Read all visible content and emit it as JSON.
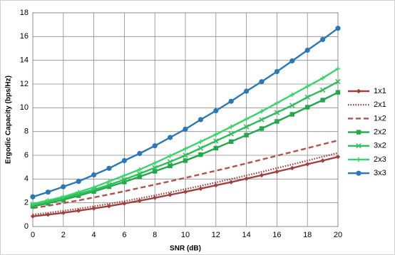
{
  "chart_data": {
    "type": "line",
    "x_label": "SNR (dB)",
    "y_label": "Ergodic Capacity (bps/Hz)",
    "x": [
      0,
      1,
      2,
      3,
      4,
      5,
      6,
      7,
      8,
      9,
      10,
      11,
      12,
      13,
      14,
      15,
      16,
      17,
      18,
      19,
      20
    ],
    "xlim": [
      0,
      20
    ],
    "xticks": [
      0,
      2,
      4,
      6,
      8,
      10,
      12,
      14,
      16,
      18,
      20
    ],
    "ylim": [
      0,
      18
    ],
    "yticks": [
      0,
      2,
      4,
      6,
      8,
      10,
      12,
      14,
      16,
      18
    ],
    "grid": true,
    "legend": "right",
    "series": [
      {
        "name": "1x1",
        "color": "#a0403e",
        "marker": "diamond",
        "dash": "solid",
        "values": [
          0.86,
          1.0,
          1.15,
          1.33,
          1.52,
          1.72,
          1.94,
          2.17,
          2.42,
          2.67,
          2.92,
          3.19,
          3.47,
          3.74,
          4.03,
          4.32,
          4.62,
          4.92,
          5.25,
          5.55,
          5.87
        ]
      },
      {
        "name": "2x1",
        "color": "#a0403e",
        "marker": "none",
        "dash": "dotted",
        "values": [
          1.0,
          1.15,
          1.32,
          1.5,
          1.7,
          1.91,
          2.13,
          2.37,
          2.62,
          2.88,
          3.15,
          3.42,
          3.71,
          4.0,
          4.3,
          4.6,
          4.92,
          5.23,
          5.55,
          5.88,
          6.2
        ]
      },
      {
        "name": "1x2",
        "color": "#b5504c",
        "marker": "none",
        "dash": "dashed",
        "values": [
          1.55,
          1.75,
          1.97,
          2.2,
          2.45,
          2.7,
          2.97,
          3.25,
          3.53,
          3.81,
          4.1,
          4.4,
          4.7,
          5.0,
          5.32,
          5.64,
          5.96,
          6.28,
          6.6,
          6.93,
          7.25
        ]
      },
      {
        "name": "2x2",
        "color": "#22a84a",
        "marker": "square",
        "dash": "solid",
        "values": [
          1.7,
          1.95,
          2.25,
          2.6,
          2.95,
          3.35,
          3.75,
          4.2,
          4.65,
          5.1,
          5.55,
          6.05,
          6.6,
          7.15,
          7.7,
          8.25,
          8.85,
          9.45,
          10.05,
          10.65,
          11.3
        ]
      },
      {
        "name": "3x2",
        "color": "#2dbf58",
        "marker": "x",
        "dash": "solid",
        "values": [
          1.85,
          2.1,
          2.4,
          2.75,
          3.1,
          3.5,
          3.95,
          4.45,
          4.95,
          5.45,
          6.0,
          6.6,
          7.2,
          7.8,
          8.4,
          9.0,
          9.6,
          10.2,
          10.9,
          11.5,
          12.2
        ]
      },
      {
        "name": "2x3",
        "color": "#3bd46a",
        "marker": "plus",
        "dash": "solid",
        "values": [
          1.9,
          2.2,
          2.5,
          2.9,
          3.3,
          3.8,
          4.3,
          4.8,
          5.35,
          5.95,
          6.55,
          7.15,
          7.75,
          8.4,
          9.05,
          9.7,
          10.4,
          11.1,
          11.8,
          12.5,
          13.3
        ]
      },
      {
        "name": "3x3",
        "color": "#2a78b8",
        "marker": "circle",
        "dash": "solid",
        "values": [
          2.5,
          2.9,
          3.35,
          3.8,
          4.35,
          4.9,
          5.55,
          6.15,
          6.8,
          7.5,
          8.2,
          9.0,
          9.75,
          10.55,
          11.4,
          12.2,
          13.05,
          13.95,
          14.85,
          15.75,
          16.7
        ]
      }
    ]
  }
}
